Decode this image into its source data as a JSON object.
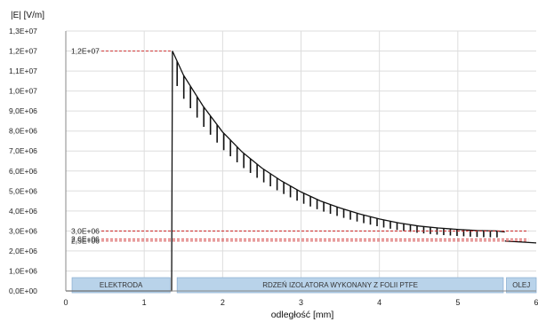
{
  "chart_data": {
    "type": "line",
    "ylabel": "|E| [V/m]",
    "xlabel": "odległość [mm]",
    "xlim": [
      0,
      6
    ],
    "ylim": [
      0,
      13000000
    ],
    "x_ticks": [
      0,
      1,
      2,
      3,
      4,
      5,
      6
    ],
    "x_tick_labels": [
      "0",
      "1",
      "2",
      "3",
      "4",
      "5",
      "6"
    ],
    "y_ticks": [
      0,
      1000000,
      2000000,
      3000000,
      4000000,
      5000000,
      6000000,
      7000000,
      8000000,
      9000000,
      10000000,
      11000000,
      12000000,
      13000000
    ],
    "y_tick_labels": [
      "0,0E+00",
      "1,0E+06",
      "2,0E+06",
      "3,0E+06",
      "4,0E+06",
      "5,0E+06",
      "6,0E+06",
      "7,0E+06",
      "8,0E+06",
      "9,0E+06",
      "1,0E+07",
      "1,1E+07",
      "1,2E+07",
      "1,3E+07"
    ],
    "grid": true,
    "series": [
      {
        "x": [
          0,
          1.35,
          1.36,
          1.5,
          1.75,
          2.0,
          2.25,
          2.5,
          2.75,
          3.0,
          3.25,
          3.5,
          3.75,
          4.0,
          4.25,
          4.5,
          4.75,
          5.0,
          5.25,
          5.5,
          5.6
        ],
        "values": [
          0,
          0,
          12000000,
          10800000,
          9250000,
          7950000,
          6950000,
          6150000,
          5500000,
          4950000,
          4500000,
          4150000,
          3850000,
          3600000,
          3400000,
          3250000,
          3150000,
          3080000,
          3020000,
          3000000,
          2950000
        ]
      },
      {
        "x": [
          5.6,
          6.0
        ],
        "values": [
          2500000,
          2400000
        ]
      }
    ],
    "annotations": [
      {
        "text": "1,2E+07",
        "y": 12000000
      },
      {
        "text": "3,0E+06",
        "y": 3000000
      },
      {
        "text": "2,6E+06",
        "y": 2600000
      },
      {
        "text": "2,5E+06",
        "y": 2500000
      }
    ],
    "regions": [
      {
        "label": "ELEKTRODA",
        "x0": 0.08,
        "x1": 1.33
      },
      {
        "label": "RDZEŃ IZOLATORA WYKONANY Z FOLII PTFE",
        "x0": 1.42,
        "x1": 5.58
      },
      {
        "label": "OLEJ",
        "x0": 5.62,
        "x1": 6.0
      }
    ],
    "colors": {
      "curve": "#111111",
      "guide": "#cc2222",
      "grid": "#dddddd",
      "band_fill": "#b9d3ea",
      "band_edge": "#8fb2d4"
    }
  }
}
